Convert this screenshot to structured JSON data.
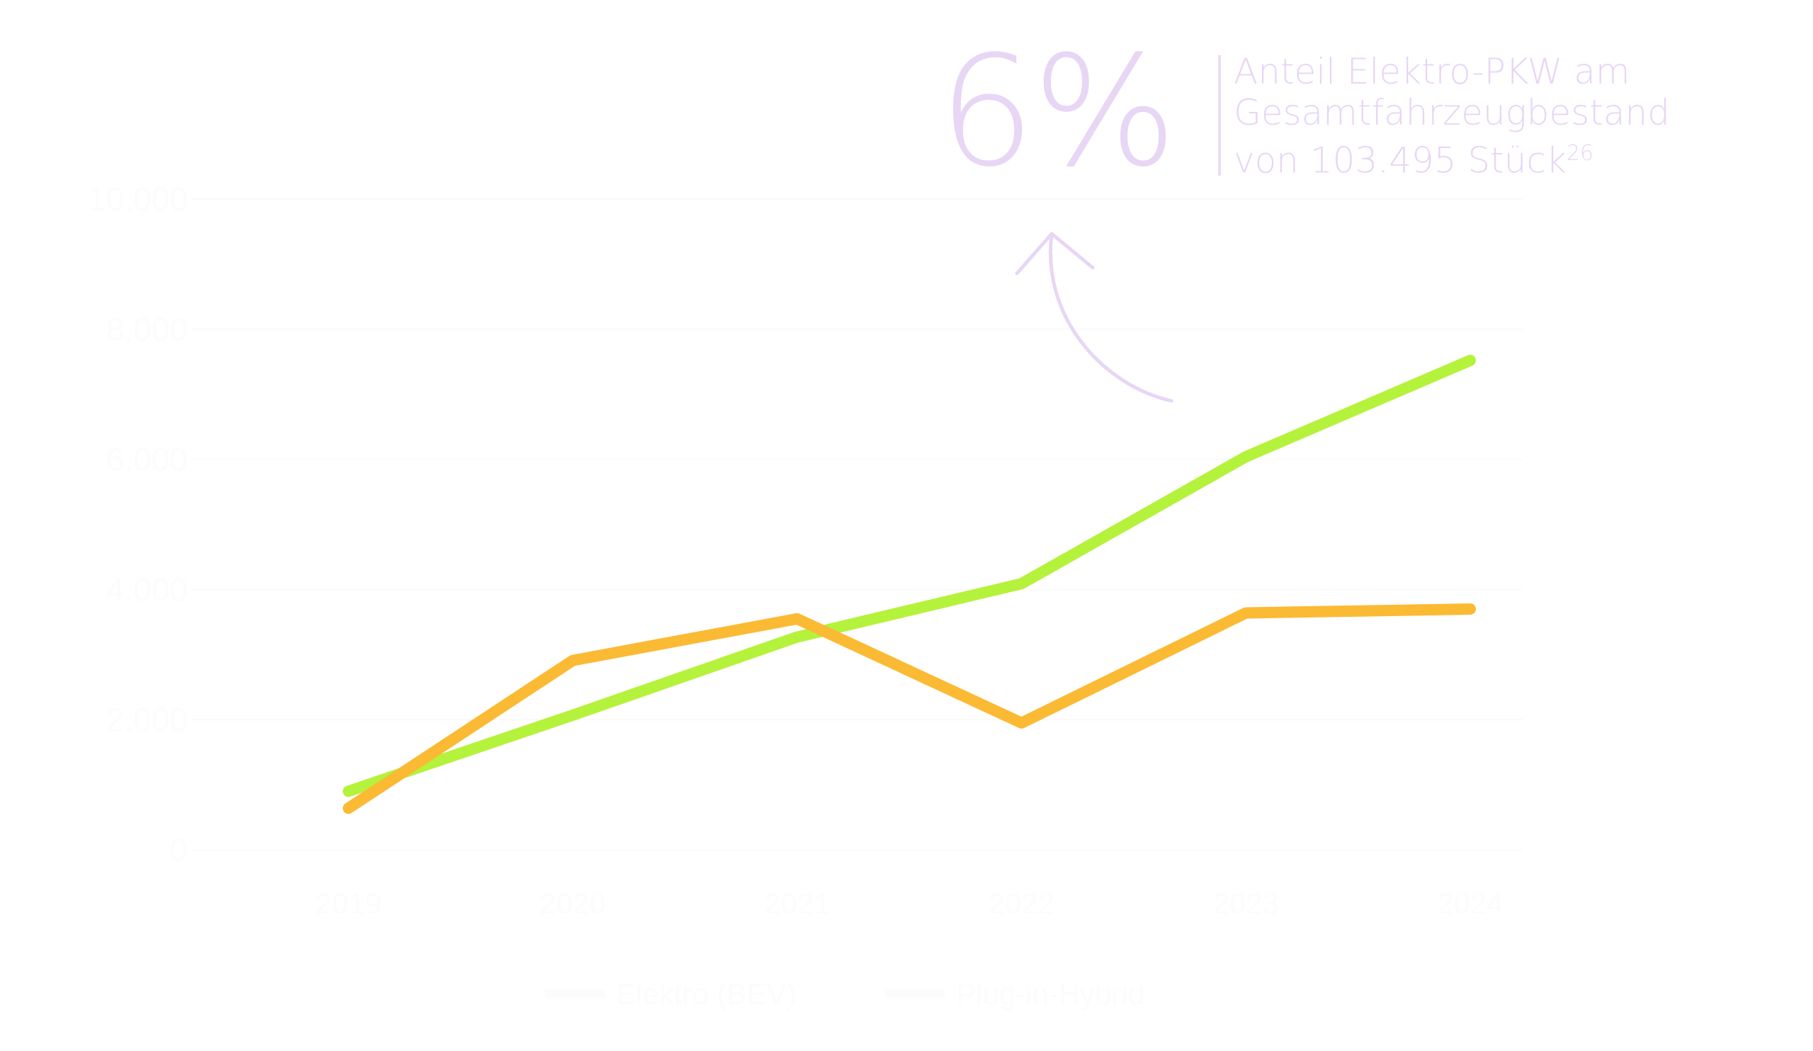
{
  "chart_data": {
    "type": "line",
    "title": "",
    "xlabel": "",
    "ylabel": "",
    "categories": [
      "2019",
      "2020",
      "2021",
      "2022",
      "2023",
      "2024"
    ],
    "ylim": [
      0,
      10000
    ],
    "yticks": [
      "0",
      "2.000",
      "4.000",
      "6.000",
      "8.000",
      "10.000"
    ],
    "ytick_values": [
      0,
      2000,
      4000,
      6000,
      8000,
      10000
    ],
    "grid": true,
    "legend_position": "bottom",
    "series": [
      {
        "name": "Elektro (BEV)",
        "color": "#b5f23c",
        "values": [
          900,
          2070,
          3270,
          4090,
          6040,
          7520
        ]
      },
      {
        "name": "Plug-in-Hybrid",
        "color": "#fbba33",
        "values": [
          640,
          2910,
          3550,
          1950,
          3640,
          3700
        ]
      }
    ],
    "text_color": "#fcfcfc"
  },
  "annotation": {
    "value": "6%",
    "line1": "Anteil Elektro-PKW am",
    "line2": "Gesamtfahrzeugbestand",
    "line3": "von 103.495 Stück",
    "footnote": "26",
    "color": "#e8d6f5"
  }
}
